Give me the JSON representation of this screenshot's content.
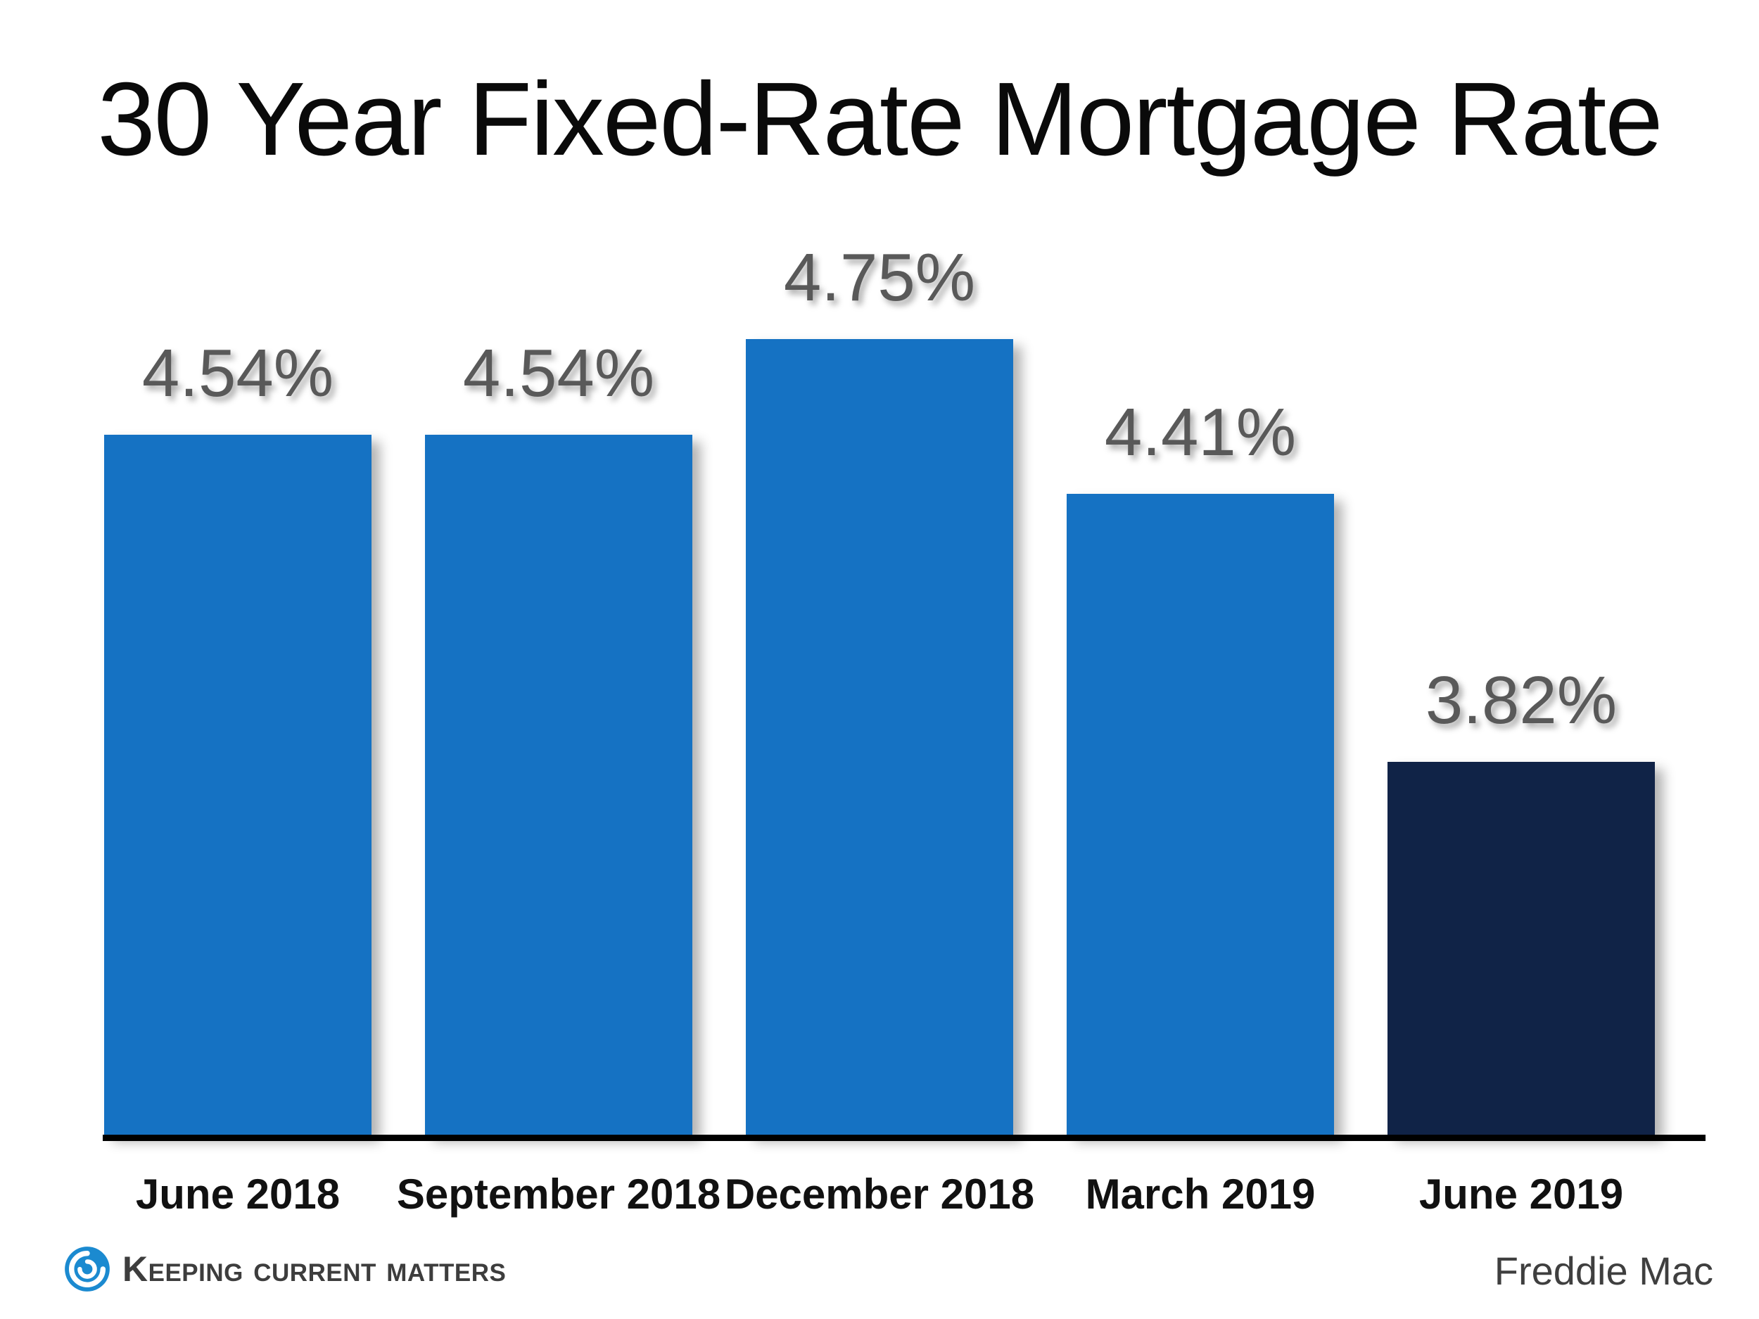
{
  "title": "30 Year Fixed-Rate Mortgage Rate",
  "source": "Freddie Mac",
  "branding": {
    "logo_text": "Keeping Current Matters",
    "logo_icon": "kcm-swirl-icon"
  },
  "colors": {
    "bar_blue": "#1572C3",
    "bar_navy": "#102347",
    "value_label_gray": "#595959",
    "title_color": "#0a0a0a",
    "baseline_color": "#000000",
    "logo_blue": "#1B8AD0"
  },
  "chart_data": {
    "type": "bar",
    "title": "30 Year Fixed-Rate Mortgage Rate",
    "categories": [
      "June 2018",
      "September 2018",
      "December 2018",
      "March 2019",
      "June 2019"
    ],
    "values": [
      4.54,
      4.54,
      4.75,
      4.41,
      3.82
    ],
    "value_labels": [
      "4.54%",
      "4.54%",
      "4.75%",
      "4.41%",
      "3.82%"
    ],
    "bar_colors": [
      "#1572C3",
      "#1572C3",
      "#1572C3",
      "#1572C3",
      "#102347"
    ],
    "xlabel": "",
    "ylabel": "",
    "ylim": [
      3.0,
      4.95
    ],
    "grid": false,
    "legend": false,
    "value_labels_position": "above",
    "source": "Freddie Mac"
  }
}
